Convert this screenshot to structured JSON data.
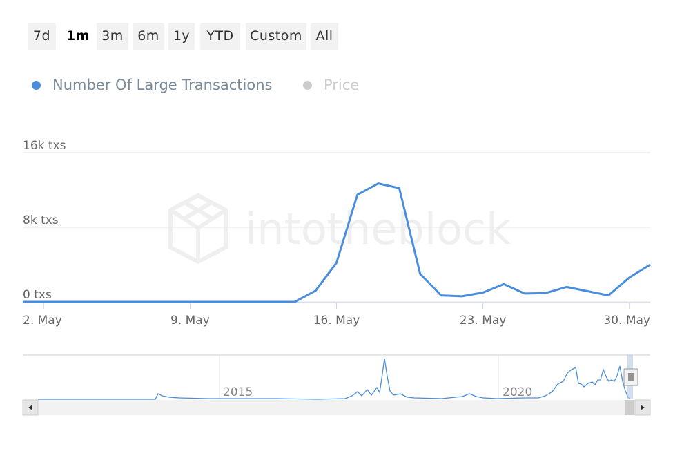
{
  "range_selector": {
    "buttons": [
      {
        "label": "7d",
        "active": false
      },
      {
        "label": "1m",
        "active": true
      },
      {
        "label": "3m",
        "active": false
      },
      {
        "label": "6m",
        "active": false
      },
      {
        "label": "1y",
        "active": false
      },
      {
        "label": "YTD",
        "active": false
      },
      {
        "label": "Custom",
        "active": false
      },
      {
        "label": "All",
        "active": false
      }
    ]
  },
  "legend": {
    "items": [
      {
        "label": "Number Of Large Transactions",
        "color": "#4a8ddc",
        "visible": true
      },
      {
        "label": "Price",
        "color": "#cccccc",
        "visible": false
      }
    ]
  },
  "watermark": "intotheblock",
  "chart_data": {
    "type": "line",
    "series": [
      {
        "name": "Number Of Large Transactions",
        "color": "#4a8ddc",
        "x": [
          "May 1",
          "May 2",
          "May 3",
          "May 4",
          "May 5",
          "May 6",
          "May 7",
          "May 8",
          "May 9",
          "May 10",
          "May 11",
          "May 12",
          "May 13",
          "May 14",
          "May 15",
          "May 16",
          "May 17",
          "May 18",
          "May 19",
          "May 20",
          "May 21",
          "May 22",
          "May 23",
          "May 24",
          "May 25",
          "May 26",
          "May 27",
          "May 28",
          "May 29",
          "May 30",
          "May 31"
        ],
        "values": [
          0,
          0,
          0,
          0,
          0,
          0,
          0,
          0,
          0,
          0,
          0,
          0,
          0,
          0,
          1200,
          4200,
          11500,
          12700,
          12200,
          3000,
          700,
          600,
          1000,
          1900,
          900,
          950,
          1600,
          1150,
          700,
          2600,
          4000
        ]
      }
    ],
    "yticks": [
      "0 txs",
      "8k txs",
      "16k txs"
    ],
    "ylim": [
      0,
      16000
    ],
    "xticks": [
      "2. May",
      "9. May",
      "16. May",
      "23. May",
      "30. May"
    ],
    "grid": true,
    "navigator": {
      "labels": [
        "2015",
        "2020"
      ]
    }
  }
}
